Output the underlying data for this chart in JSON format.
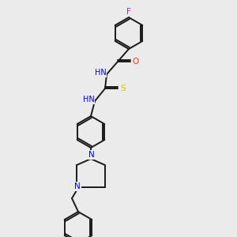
{
  "background_color": "#ebebeb",
  "bond_color": "#1a1a1a",
  "atom_colors": {
    "F": "#e000e0",
    "O": "#ff3300",
    "S": "#cccc00",
    "N": "#0000ee",
    "C": "#1a1a1a",
    "H": "#1a1a1a"
  },
  "figsize": [
    3.0,
    3.0
  ],
  "dpi": 100
}
